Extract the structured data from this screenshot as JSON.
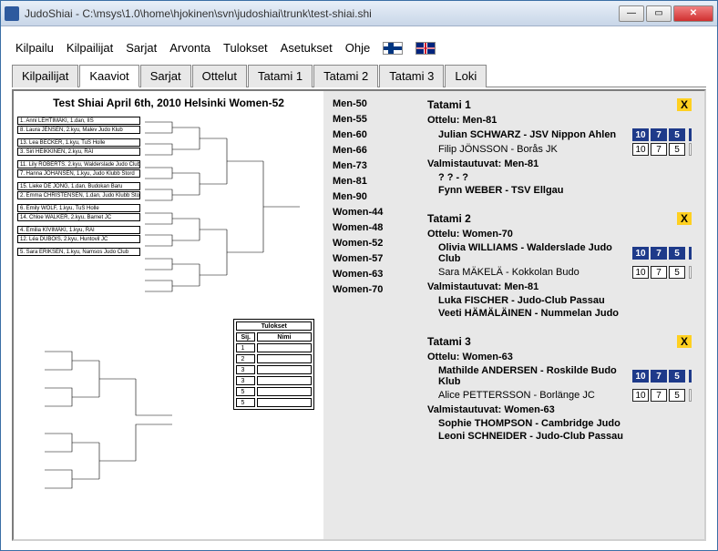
{
  "window_title": "JudoShiai - C:\\msys\\1.0\\home\\hjokinen\\svn\\judoshiai\\trunk\\test-shiai.shi",
  "menu": [
    "Kilpailu",
    "Kilpailijat",
    "Sarjat",
    "Arvonta",
    "Tulokset",
    "Asetukset",
    "Ohje"
  ],
  "tabs": [
    "Kilpailijat",
    "Kaaviot",
    "Sarjat",
    "Ottelut",
    "Tatami 1",
    "Tatami 2",
    "Tatami 3",
    "Loki"
  ],
  "active_tab": 1,
  "bracket_title": "Test Shiai  April 6th, 2010  Helsinki   Women-52",
  "bracket_entries": [
    "1. Anni LEHTIMÄKI, 1.dan, IIS",
    "8. Laura JENSEN, 2.kyu, Malev Judo Klub",
    "13. Lea BECKER, 1.kyu, TuS Holle",
    "3. Siri HEIKKINEN, 2.kyu, RAI",
    "11. Lily ROBERTS, 2.kyu, Walderslade Judo Club",
    "7. Hanna JOHANSEN, 1.kyu, Judo Klubb Stord",
    "15. Lieke DE JONG, 1.dan, Budokan Baru",
    "2. Emma CHRISTENSEN, 1.dan, Judo Klubb Stord",
    "6. Emily WOLF, 1.kyu, TuS Holle",
    "14. Chloe WALKER, 2.kyu, Barnet JC",
    "4. Emilia KIVIMÄKI, 1.kyu, RAI",
    "12. Léa DUBOIS, 2.kyu, Huntovil JC",
    "5. Sara ERIKSEN, 1.kyu, Namsos Judo Club"
  ],
  "bracket_winners": [
    "LEHTIMÄKI",
    "BECKER",
    "HEIKKINEN",
    "JOHANSEN",
    "CHRISTENSEN",
    "DUBOIS",
    "ERIKSEN"
  ],
  "results_header": "Tulokset",
  "results_cols": [
    "Sij.",
    "Nimi"
  ],
  "results_rows": [
    "1",
    "2",
    "3",
    "3",
    "5",
    "5"
  ],
  "categories": [
    "Men-50",
    "Men-55",
    "Men-60",
    "Men-66",
    "Men-73",
    "Men-81",
    "Men-90",
    "Women-44",
    "Women-48",
    "Women-52",
    "Women-57",
    "Women-63",
    "Women-70"
  ],
  "tatamis": [
    {
      "title": "Tatami 1",
      "ottelu": "Ottelu: Men-81",
      "m1": {
        "name": "Julian SCHWARZ - JSV Nippon Ahlen",
        "s": [
          "10",
          "7",
          "5"
        ],
        "style": "blue"
      },
      "m2": {
        "name": "Filip JÖNSSON - Borås JK",
        "s": [
          "10",
          "7",
          "5"
        ],
        "style": "white"
      },
      "valm": "Valmistautuvat: Men-81",
      "v1": "? ? - ?",
      "v2": "Fynn WEBER - TSV Ellgau"
    },
    {
      "title": "Tatami 2",
      "ottelu": "Ottelu: Women-70",
      "m1": {
        "name": "Olivia WILLIAMS - Walderslade Judo Club",
        "s": [
          "10",
          "7",
          "5"
        ],
        "style": "blue"
      },
      "m2": {
        "name": "Sara MÄKELÄ - Kokkolan Budo",
        "s": [
          "10",
          "7",
          "5"
        ],
        "style": "white"
      },
      "valm": "Valmistautuvat: Men-81",
      "v1": "Luka FISCHER - Judo-Club Passau",
      "v2": "Veeti HÄMÄLÄINEN - Nummelan Judo"
    },
    {
      "title": "Tatami 3",
      "ottelu": "Ottelu: Women-63",
      "m1": {
        "name": "Mathilde ANDERSEN - Roskilde Budo Klub",
        "s": [
          "10",
          "7",
          "5"
        ],
        "style": "blue"
      },
      "m2": {
        "name": "Alice PETTERSSON - Borlänge JC",
        "s": [
          "10",
          "7",
          "5"
        ],
        "style": "white"
      },
      "valm": "Valmistautuvat: Women-63",
      "v1": "Sophie THOMPSON - Cambridge Judo",
      "v2": "Leoni SCHNEIDER - Judo-Club Passau"
    }
  ]
}
